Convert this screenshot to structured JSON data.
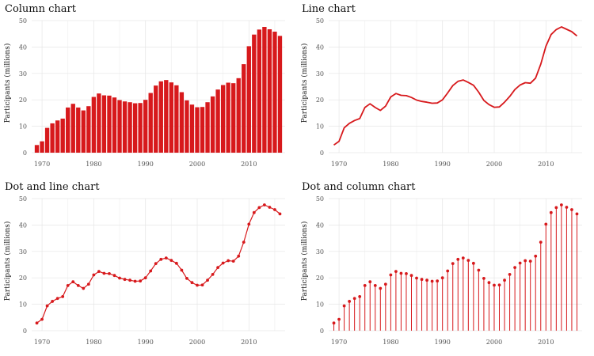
{
  "colors": {
    "accent": "#d7191c",
    "grid": "#e6e6e6"
  },
  "chart_data": [
    {
      "type": "bar",
      "title": "Column chart",
      "ylabel": "Participants (millions)",
      "xlabel": "",
      "ylim": [
        0,
        50
      ],
      "xlim": [
        1968,
        2017
      ],
      "xticks": [
        1970,
        1980,
        1990,
        2000,
        2010
      ],
      "yticks": [
        0,
        10,
        20,
        30,
        40,
        50
      ],
      "grid": true,
      "x": [
        1969,
        1970,
        1971,
        1972,
        1973,
        1974,
        1975,
        1976,
        1977,
        1978,
        1979,
        1980,
        1981,
        1982,
        1983,
        1984,
        1985,
        1986,
        1987,
        1988,
        1989,
        1990,
        1991,
        1992,
        1993,
        1994,
        1995,
        1996,
        1997,
        1998,
        1999,
        2000,
        2001,
        2002,
        2003,
        2004,
        2005,
        2006,
        2007,
        2008,
        2009,
        2010,
        2011,
        2012,
        2013,
        2014,
        2015,
        2016
      ],
      "values": [
        2.9,
        4.3,
        9.4,
        11.1,
        12.2,
        12.9,
        17.1,
        18.5,
        17.1,
        16.0,
        17.6,
        21.1,
        22.4,
        21.7,
        21.6,
        20.9,
        19.9,
        19.4,
        19.1,
        18.7,
        18.8,
        20.0,
        22.6,
        25.4,
        27.0,
        27.5,
        26.6,
        25.5,
        22.9,
        19.8,
        18.2,
        17.2,
        17.3,
        19.1,
        21.3,
        23.9,
        25.6,
        26.5,
        26.3,
        28.2,
        33.5,
        40.3,
        44.7,
        46.6,
        47.6,
        46.7,
        45.8,
        44.2
      ]
    },
    {
      "type": "line",
      "title": "Line chart",
      "ylabel": "Participants (millions)",
      "xlabel": "",
      "ylim": [
        0,
        50
      ],
      "xlim": [
        1968,
        2017
      ],
      "xticks": [
        1970,
        1980,
        1990,
        2000,
        2010
      ],
      "yticks": [
        0,
        10,
        20,
        30,
        40,
        50
      ],
      "grid": true,
      "x": [
        1969,
        1970,
        1971,
        1972,
        1973,
        1974,
        1975,
        1976,
        1977,
        1978,
        1979,
        1980,
        1981,
        1982,
        1983,
        1984,
        1985,
        1986,
        1987,
        1988,
        1989,
        1990,
        1991,
        1992,
        1993,
        1994,
        1995,
        1996,
        1997,
        1998,
        1999,
        2000,
        2001,
        2002,
        2003,
        2004,
        2005,
        2006,
        2007,
        2008,
        2009,
        2010,
        2011,
        2012,
        2013,
        2014,
        2015,
        2016
      ],
      "values": [
        2.9,
        4.3,
        9.4,
        11.1,
        12.2,
        12.9,
        17.1,
        18.5,
        17.1,
        16.0,
        17.6,
        21.1,
        22.4,
        21.7,
        21.6,
        20.9,
        19.9,
        19.4,
        19.1,
        18.7,
        18.8,
        20.0,
        22.6,
        25.4,
        27.0,
        27.5,
        26.6,
        25.5,
        22.9,
        19.8,
        18.2,
        17.2,
        17.3,
        19.1,
        21.3,
        23.9,
        25.6,
        26.5,
        26.3,
        28.2,
        33.5,
        40.3,
        44.7,
        46.6,
        47.6,
        46.7,
        45.8,
        44.2
      ]
    },
    {
      "type": "line",
      "title": "Dot and line chart",
      "ylabel": "Participants (millions)",
      "xlabel": "",
      "ylim": [
        0,
        50
      ],
      "xlim": [
        1968,
        2017
      ],
      "xticks": [
        1970,
        1980,
        1990,
        2000,
        2010
      ],
      "yticks": [
        0,
        10,
        20,
        30,
        40,
        50
      ],
      "grid": true,
      "x": [
        1969,
        1970,
        1971,
        1972,
        1973,
        1974,
        1975,
        1976,
        1977,
        1978,
        1979,
        1980,
        1981,
        1982,
        1983,
        1984,
        1985,
        1986,
        1987,
        1988,
        1989,
        1990,
        1991,
        1992,
        1993,
        1994,
        1995,
        1996,
        1997,
        1998,
        1999,
        2000,
        2001,
        2002,
        2003,
        2004,
        2005,
        2006,
        2007,
        2008,
        2009,
        2010,
        2011,
        2012,
        2013,
        2014,
        2015,
        2016
      ],
      "values": [
        2.9,
        4.3,
        9.4,
        11.1,
        12.2,
        12.9,
        17.1,
        18.5,
        17.1,
        16.0,
        17.6,
        21.1,
        22.4,
        21.7,
        21.6,
        20.9,
        19.9,
        19.4,
        19.1,
        18.7,
        18.8,
        20.0,
        22.6,
        25.4,
        27.0,
        27.5,
        26.6,
        25.5,
        22.9,
        19.8,
        18.2,
        17.2,
        17.3,
        19.1,
        21.3,
        23.9,
        25.6,
        26.5,
        26.3,
        28.2,
        33.5,
        40.3,
        44.7,
        46.6,
        47.6,
        46.7,
        45.8,
        44.2
      ]
    },
    {
      "type": "bar",
      "title": "Dot and column chart",
      "ylabel": "Participants (millions)",
      "xlabel": "",
      "ylim": [
        0,
        50
      ],
      "xlim": [
        1968,
        2017
      ],
      "xticks": [
        1970,
        1980,
        1990,
        2000,
        2010
      ],
      "yticks": [
        0,
        10,
        20,
        30,
        40,
        50
      ],
      "grid": true,
      "x": [
        1969,
        1970,
        1971,
        1972,
        1973,
        1974,
        1975,
        1976,
        1977,
        1978,
        1979,
        1980,
        1981,
        1982,
        1983,
        1984,
        1985,
        1986,
        1987,
        1988,
        1989,
        1990,
        1991,
        1992,
        1993,
        1994,
        1995,
        1996,
        1997,
        1998,
        1999,
        2000,
        2001,
        2002,
        2003,
        2004,
        2005,
        2006,
        2007,
        2008,
        2009,
        2010,
        2011,
        2012,
        2013,
        2014,
        2015,
        2016
      ],
      "values": [
        2.9,
        4.3,
        9.4,
        11.1,
        12.2,
        12.9,
        17.1,
        18.5,
        17.1,
        16.0,
        17.6,
        21.1,
        22.4,
        21.7,
        21.6,
        20.9,
        19.9,
        19.4,
        19.1,
        18.7,
        18.8,
        20.0,
        22.6,
        25.4,
        27.0,
        27.5,
        26.6,
        25.5,
        22.9,
        19.8,
        18.2,
        17.2,
        17.3,
        19.1,
        21.3,
        23.9,
        25.6,
        26.5,
        26.3,
        28.2,
        33.5,
        40.3,
        44.7,
        46.6,
        47.6,
        46.7,
        45.8,
        44.2
      ]
    }
  ]
}
